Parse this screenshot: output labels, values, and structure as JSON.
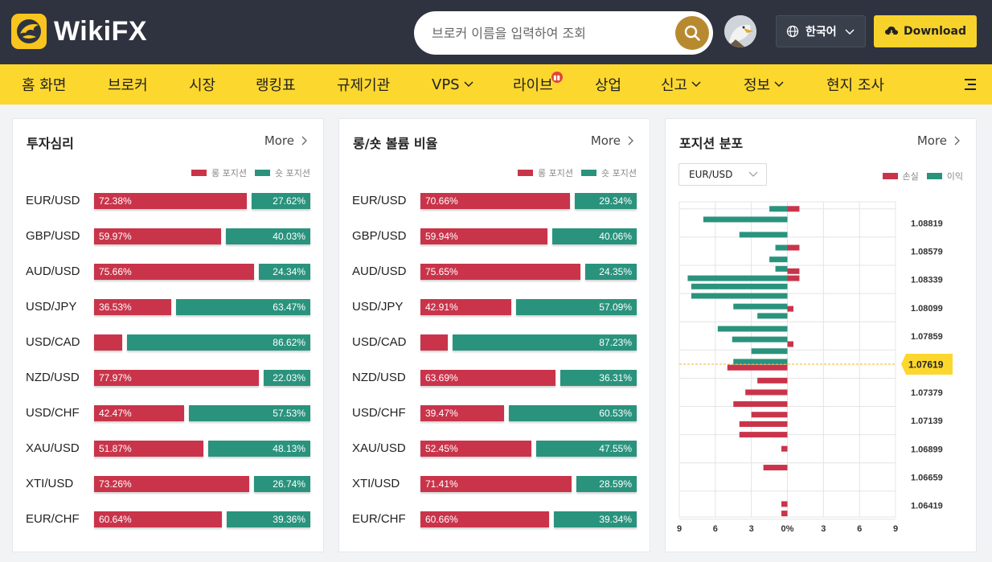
{
  "header": {
    "logo_text": "WikiFX",
    "search_placeholder": "브로커 이름을 입력하여 조회",
    "language": "한국어",
    "download_label": "Download"
  },
  "nav": {
    "items": [
      {
        "label": "홈 화면",
        "dropdown": false
      },
      {
        "label": "브로커",
        "dropdown": false
      },
      {
        "label": "시장",
        "dropdown": false
      },
      {
        "label": "랭킹표",
        "dropdown": false
      },
      {
        "label": "규제기관",
        "dropdown": false
      },
      {
        "label": "VPS",
        "dropdown": true
      },
      {
        "label": "라이브",
        "dropdown": false
      },
      {
        "label": "상업",
        "dropdown": false
      },
      {
        "label": "신고",
        "dropdown": true
      },
      {
        "label": "정보",
        "dropdown": true
      },
      {
        "label": "현지 조사",
        "dropdown": false
      }
    ]
  },
  "colors": {
    "long": "#c9344a",
    "short": "#2a937d",
    "accent": "#fcd72e"
  },
  "sentiment": {
    "title": "투자심리",
    "more": "More",
    "legend_long": "롱 포지션",
    "legend_short": "숏 포지션",
    "rows": [
      {
        "pair": "EUR/USD",
        "long": 72.38,
        "short": 27.62,
        "long_label": "72.38%",
        "short_label": "27.62%"
      },
      {
        "pair": "GBP/USD",
        "long": 59.97,
        "short": 40.03,
        "long_label": "59.97%",
        "short_label": "40.03%"
      },
      {
        "pair": "AUD/USD",
        "long": 75.66,
        "short": 24.34,
        "long_label": "75.66%",
        "short_label": "24.34%"
      },
      {
        "pair": "USD/JPY",
        "long": 36.53,
        "short": 63.47,
        "long_label": "36.53%",
        "short_label": "63.47%"
      },
      {
        "pair": "USD/CAD",
        "long": 13.38,
        "short": 86.62,
        "long_label": "",
        "short_label": "86.62%"
      },
      {
        "pair": "NZD/USD",
        "long": 77.97,
        "short": 22.03,
        "long_label": "77.97%",
        "short_label": "22.03%"
      },
      {
        "pair": "USD/CHF",
        "long": 42.47,
        "short": 57.53,
        "long_label": "42.47%",
        "short_label": "57.53%"
      },
      {
        "pair": "XAU/USD",
        "long": 51.87,
        "short": 48.13,
        "long_label": "51.87%",
        "short_label": "48.13%"
      },
      {
        "pair": "XTI/USD",
        "long": 73.26,
        "short": 26.74,
        "long_label": "73.26%",
        "short_label": "26.74%"
      },
      {
        "pair": "EUR/CHF",
        "long": 60.64,
        "short": 39.36,
        "long_label": "60.64%",
        "short_label": "39.36%"
      }
    ]
  },
  "volume": {
    "title": "롱/숏 볼륨 비율",
    "more": "More",
    "legend_long": "롱 포지션",
    "legend_short": "숏 포지션",
    "rows": [
      {
        "pair": "EUR/USD",
        "long": 70.66,
        "short": 29.34,
        "long_label": "70.66%",
        "short_label": "29.34%"
      },
      {
        "pair": "GBP/USD",
        "long": 59.94,
        "short": 40.06,
        "long_label": "59.94%",
        "short_label": "40.06%"
      },
      {
        "pair": "AUD/USD",
        "long": 75.65,
        "short": 24.35,
        "long_label": "75.65%",
        "short_label": "24.35%"
      },
      {
        "pair": "USD/JPY",
        "long": 42.91,
        "short": 57.09,
        "long_label": "42.91%",
        "short_label": "57.09%"
      },
      {
        "pair": "USD/CAD",
        "long": 12.77,
        "short": 87.23,
        "long_label": "",
        "short_label": "87.23%"
      },
      {
        "pair": "NZD/USD",
        "long": 63.69,
        "short": 36.31,
        "long_label": "63.69%",
        "short_label": "36.31%"
      },
      {
        "pair": "USD/CHF",
        "long": 39.47,
        "short": 60.53,
        "long_label": "39.47%",
        "short_label": "60.53%"
      },
      {
        "pair": "XAU/USD",
        "long": 52.45,
        "short": 47.55,
        "long_label": "52.45%",
        "short_label": "47.55%"
      },
      {
        "pair": "XTI/USD",
        "long": 71.41,
        "short": 28.59,
        "long_label": "71.41%",
        "short_label": "28.59%"
      },
      {
        "pair": "EUR/CHF",
        "long": 60.66,
        "short": 39.34,
        "long_label": "60.66%",
        "short_label": "39.34%"
      }
    ]
  },
  "distribution": {
    "title": "포지션 분포",
    "more": "More",
    "symbol": "EUR/USD",
    "legend_loss": "손실",
    "legend_profit": "이익",
    "current_price": "1.07619",
    "price_labels": [
      "1.08819",
      "1.08579",
      "1.08339",
      "1.08099",
      "1.07859",
      "1.07379",
      "1.07139",
      "1.06899",
      "1.06659",
      "1.06419"
    ],
    "x_labels": [
      "9",
      "6",
      "3",
      "0%",
      "3",
      "6",
      "9"
    ]
  },
  "chart_data": {
    "type": "bar",
    "title": "포지션 분포",
    "orientation": "horizontal",
    "xlim": [
      -9,
      9
    ],
    "x_ticks": [
      "9",
      "6",
      "3",
      "0%",
      "3",
      "6",
      "9"
    ],
    "y_ticks": [
      "1.08819",
      "1.08579",
      "1.08339",
      "1.08099",
      "1.07859",
      "1.07619",
      "1.07379",
      "1.07139",
      "1.06899",
      "1.06659",
      "1.06419"
    ],
    "ylim": [
      1.0632,
      1.09
    ],
    "current_price": 1.07619,
    "series": [
      {
        "name": "손실",
        "color": "#c9344a",
        "points": [
          {
            "price": 1.0894,
            "value": 1.0
          },
          {
            "price": 1.0861,
            "value": 1.0
          },
          {
            "price": 1.0841,
            "value": 1.0
          },
          {
            "price": 1.0835,
            "value": 1.0
          },
          {
            "price": 1.0809,
            "value": 0.5
          },
          {
            "price": 1.0779,
            "value": 0.5
          },
          {
            "price": 1.0759,
            "value": -5.0
          },
          {
            "price": 1.0748,
            "value": -2.5
          },
          {
            "price": 1.0738,
            "value": -3.5
          },
          {
            "price": 1.0728,
            "value": -4.5
          },
          {
            "price": 1.0719,
            "value": -3.0
          },
          {
            "price": 1.0711,
            "value": -4.0
          },
          {
            "price": 1.0702,
            "value": -4.0
          },
          {
            "price": 1.069,
            "value": -0.5
          },
          {
            "price": 1.0674,
            "value": -2.0
          },
          {
            "price": 1.0643,
            "value": -0.5
          },
          {
            "price": 1.0635,
            "value": -0.5
          }
        ]
      },
      {
        "name": "이익",
        "color": "#2a937d",
        "points": [
          {
            "price": 1.0894,
            "value": -1.5
          },
          {
            "price": 1.0885,
            "value": -7.0
          },
          {
            "price": 1.0872,
            "value": -4.0
          },
          {
            "price": 1.0861,
            "value": -1.0
          },
          {
            "price": 1.0851,
            "value": -1.5
          },
          {
            "price": 1.0843,
            "value": -1.0
          },
          {
            "price": 1.0835,
            "value": -8.3
          },
          {
            "price": 1.0828,
            "value": -8.0
          },
          {
            "price": 1.082,
            "value": -8.0
          },
          {
            "price": 1.0811,
            "value": -4.5
          },
          {
            "price": 1.0803,
            "value": -2.5
          },
          {
            "price": 1.0792,
            "value": -5.8
          },
          {
            "price": 1.0783,
            "value": -4.6
          },
          {
            "price": 1.0773,
            "value": -3.0
          },
          {
            "price": 1.0764,
            "value": -4.5
          }
        ]
      }
    ]
  }
}
